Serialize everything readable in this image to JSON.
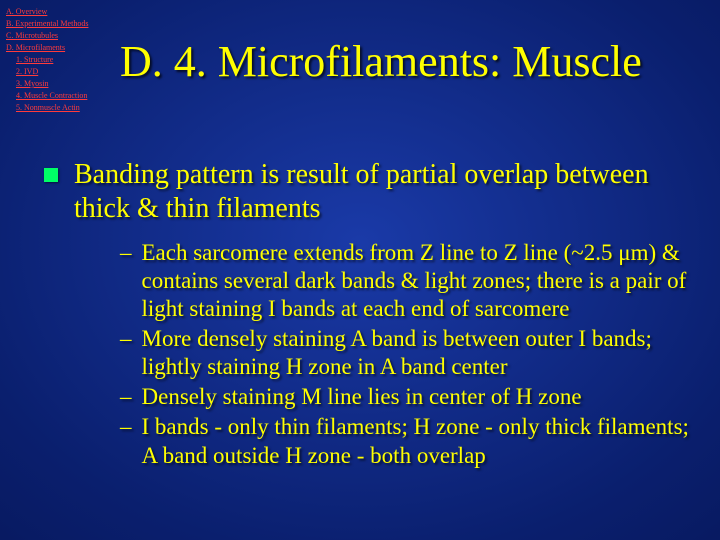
{
  "nav": {
    "items": [
      {
        "label": "A. Overview",
        "indent": 0
      },
      {
        "label": "B. Experimental Methods",
        "indent": 0
      },
      {
        "label": "C. Microtubules",
        "indent": 0
      },
      {
        "label": "D. Microfilaments",
        "indent": 0
      },
      {
        "label": "1. Structure",
        "indent": 1
      },
      {
        "label": "2. IVD",
        "indent": 1
      },
      {
        "label": "3. Myosin",
        "indent": 1
      },
      {
        "label": "4. Muscle Contraction",
        "indent": 1
      },
      {
        "label": "5. Nonmuscle Actin",
        "indent": 1
      }
    ]
  },
  "title": "D. 4. Microfilaments: Muscle",
  "main": {
    "bullet": "Banding pattern is result of partial overlap between thick & thin filaments",
    "subs": [
      "Each sarcomere extends from Z line to Z line (~2.5 μm) & contains several dark bands & light zones; there is a pair of light staining I bands at each end of sarcomere",
      "More densely staining A band is between outer I bands; lightly staining H zone in A band center",
      "Densely staining M line lies in center of H zone",
      "I bands - only thin filaments; H zone - only thick filaments; A band outside H zone - both overlap"
    ]
  },
  "style": {
    "title_fontsize": 44,
    "main_fontsize": 28,
    "sub_fontsize": 23,
    "nav_fontsize": 8,
    "text_color": "#ffff00",
    "nav_link_color": "#ff3b3b",
    "bullet_color": "#00ff66",
    "bg_center": "#1a3aa8",
    "bg_outer": "#020a3a"
  }
}
